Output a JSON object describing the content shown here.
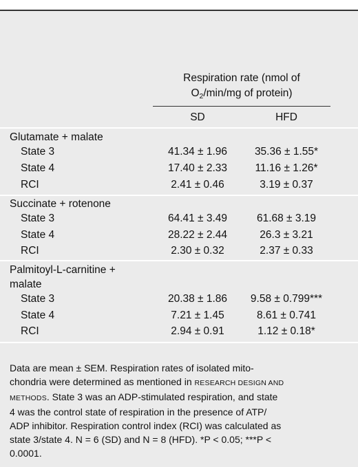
{
  "table": {
    "spanning_header": {
      "line1": "Respiration rate (nmol of",
      "line2_prefix": "O",
      "line2_sub": "2",
      "line2_suffix": "/min/mg of protein)"
    },
    "columns": [
      "SD",
      "HFD"
    ],
    "groups": [
      {
        "label_lines": [
          "Glutamate + malate"
        ],
        "rows": [
          {
            "label": "State 3",
            "sd": "41.34 ± 1.96",
            "hfd": "35.36 ± 1.55*"
          },
          {
            "label": "State 4",
            "sd": "17.40 ± 2.33",
            "hfd": "11.16 ± 1.26*"
          },
          {
            "label": "RCI",
            "sd": "2.41 ± 0.46",
            "hfd": "3.19 ± 0.37"
          }
        ]
      },
      {
        "label_lines": [
          "Succinate + rotenone"
        ],
        "rows": [
          {
            "label": "State 3",
            "sd": "64.41 ± 3.49",
            "hfd": "61.68 ± 3.19"
          },
          {
            "label": "State 4",
            "sd": "28.22 ± 2.44",
            "hfd": "26.3 ± 3.21"
          },
          {
            "label": "RCI",
            "sd": "2.30 ± 0.32",
            "hfd": "2.37 ± 0.33"
          }
        ]
      },
      {
        "label_lines": [
          "Palmitoyl-L-carnitine +",
          "malate"
        ],
        "rows": [
          {
            "label": "State 3",
            "sd": "20.38 ± 1.86",
            "hfd": "9.58 ± 0.799***"
          },
          {
            "label": "State 4",
            "sd": "7.21 ± 1.45",
            "hfd": "8.61 ± 0.741"
          },
          {
            "label": "RCI",
            "sd": "2.94 ± 0.91",
            "hfd": "1.12 ± 0.18*"
          }
        ]
      }
    ]
  },
  "footnote": {
    "lines": [
      "Data are mean ± SEM. Respiration rates of isolated mito-",
      "chondria were determined as mentioned in ",
      "RESEARCH DESIGN AND",
      "METHODS",
      ". State 3 was an ADP-stimulated respiration, and state",
      "4 was the control state of respiration in the presence of ATP/",
      "ADP inhibitor. Respiration control index (RCI) was calculated as",
      "state 3/state 4. N = 6 (SD) and N = 8 (HFD). *P < 0.05; ***P <",
      "0.0001."
    ]
  }
}
